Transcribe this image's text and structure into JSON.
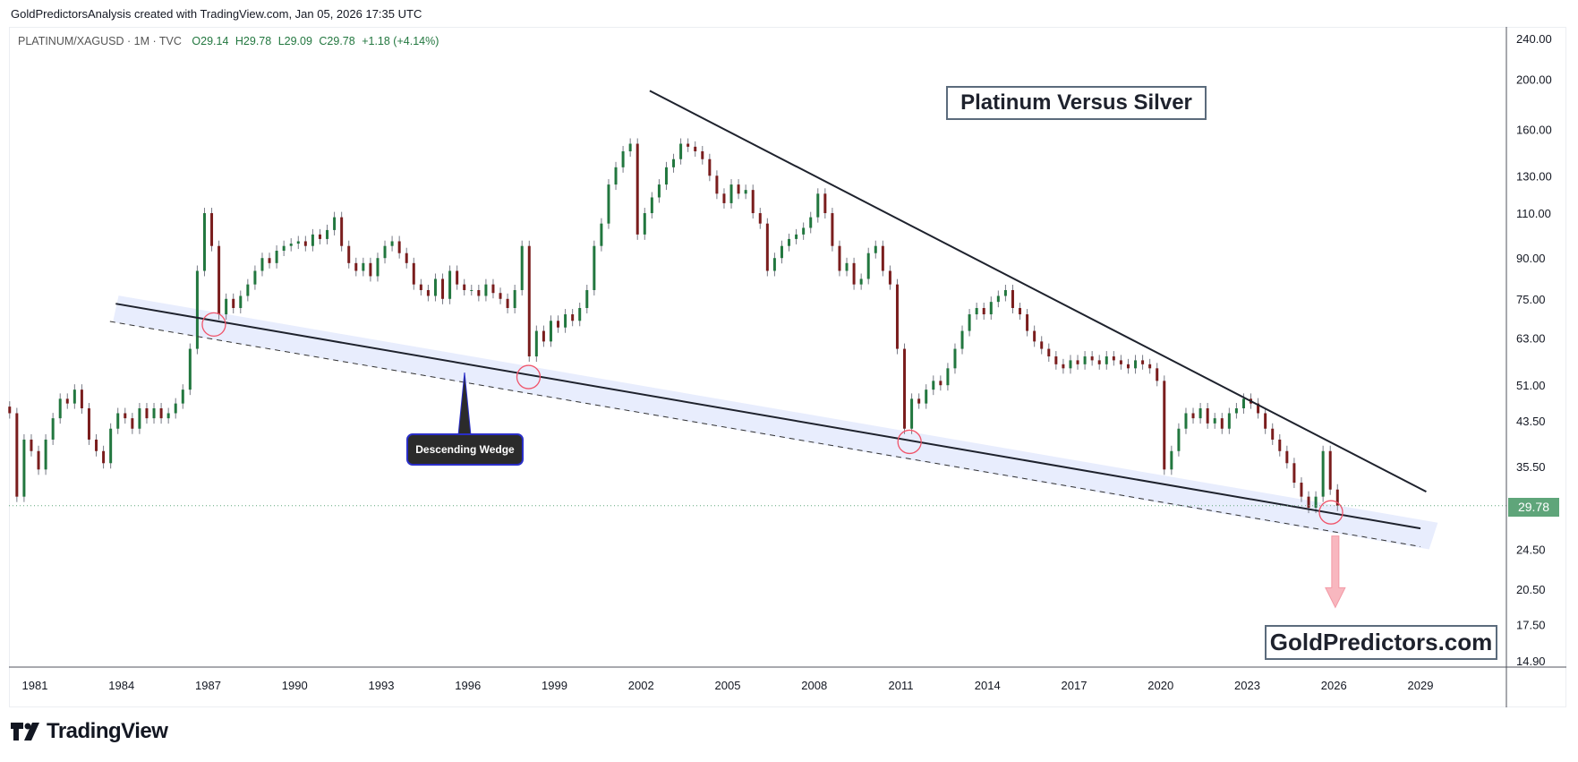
{
  "header": {
    "attribution": "GoldPredictorsAnalysis created with TradingView.com, Jan 05, 2026 17:35 UTC"
  },
  "legend": {
    "symbol": "PLATINUM/XAGUSD · 1M · TVC",
    "open": "O29.14",
    "high": "H29.78",
    "low": "L29.09",
    "close": "C29.78",
    "change": "+1.18 (+4.14%)"
  },
  "annotations": {
    "title": "Platinum Versus Silver",
    "wedge_label": "Descending Wedge",
    "watermark": "GoldPredictors.com"
  },
  "footer": {
    "brand": "TradingView"
  },
  "colors": {
    "up": "#22773f",
    "down": "#7a1d1d",
    "wick": "#787b86",
    "band": "#e8edfd",
    "circle": "#f0546a",
    "arrow": "#f8b7bf",
    "last_price": "#5fa57a"
  },
  "chart_data": {
    "type": "candlestick",
    "scale": "log",
    "ylim": [
      14.9,
      240
    ],
    "xlim": [
      1980,
      2031
    ],
    "grid": false,
    "y_ticks": [
      "240.00",
      "200.00",
      "160.00",
      "130.00",
      "110.00",
      "90.00",
      "75.00",
      "63.00",
      "51.00",
      "43.50",
      "35.50",
      "24.50",
      "20.50",
      "17.50",
      "14.90"
    ],
    "x_ticks": [
      "1981",
      "1984",
      "1987",
      "1990",
      "1993",
      "1996",
      "1999",
      "2002",
      "2005",
      "2008",
      "2011",
      "2014",
      "2017",
      "2020",
      "2023",
      "2026",
      "2029"
    ],
    "last_price": "29.78",
    "series_start": "1980 Q1",
    "interval": "quarter",
    "close": [
      45,
      31,
      40,
      38,
      35,
      40,
      44,
      48,
      47,
      50,
      46,
      40,
      38,
      36,
      42,
      45,
      44,
      42,
      46,
      44,
      46,
      44,
      45,
      47,
      50,
      60,
      85,
      110,
      95,
      70,
      75,
      72,
      76,
      80,
      85,
      90,
      88,
      93,
      95,
      96,
      97,
      95,
      100,
      98,
      102,
      108,
      95,
      88,
      85,
      88,
      83,
      90,
      95,
      97,
      92,
      88,
      80,
      78,
      76,
      82,
      75,
      85,
      80,
      78,
      78,
      76,
      80,
      77,
      75,
      72,
      78,
      95,
      58,
      65,
      62,
      68,
      66,
      70,
      68,
      72,
      78,
      95,
      105,
      125,
      135,
      145,
      150,
      100,
      110,
      118,
      125,
      135,
      140,
      150,
      148,
      145,
      140,
      130,
      120,
      115,
      125,
      120,
      122,
      110,
      105,
      85,
      90,
      95,
      98,
      100,
      103,
      108,
      120,
      110,
      95,
      85,
      88,
      80,
      82,
      92,
      95,
      85,
      80,
      60,
      42,
      48,
      47,
      50,
      52,
      51,
      55,
      60,
      65,
      70,
      72,
      70,
      74,
      76,
      78,
      72,
      70,
      65,
      62,
      60,
      58,
      56,
      55,
      57,
      56,
      58,
      57,
      56,
      58,
      57,
      56,
      55,
      57,
      56,
      55,
      52,
      35,
      38,
      42,
      45,
      44,
      46,
      43,
      44,
      42,
      45,
      46,
      48,
      47,
      45,
      42,
      40,
      38,
      36,
      33,
      31,
      29.5,
      31,
      38,
      32,
      29.78
    ],
    "trendlines": {
      "resistance": [
        [
          2002.3,
          190
        ],
        [
          2029.2,
          31.7
        ]
      ],
      "support": [
        [
          1983.8,
          73.4
        ],
        [
          2029.0,
          26.9
        ]
      ],
      "support_lower_dashed": [
        [
          1983.6,
          67.8
        ],
        [
          2029.0,
          24.8
        ]
      ],
      "band": [
        [
          1983.9,
          76.1
        ],
        [
          2029.6,
          27.6
        ],
        [
          2029.3,
          24.5
        ],
        [
          1983.7,
          67.6
        ]
      ]
    },
    "touch_points": [
      [
        1987.2,
        66.9
      ],
      [
        1998.1,
        52.9
      ],
      [
        2011.3,
        39.6
      ],
      [
        2025.9,
        28.9
      ]
    ],
    "projection_arrow": [
      [
        2026.05,
        26.0
      ],
      [
        2026.05,
        18.9
      ]
    ]
  }
}
